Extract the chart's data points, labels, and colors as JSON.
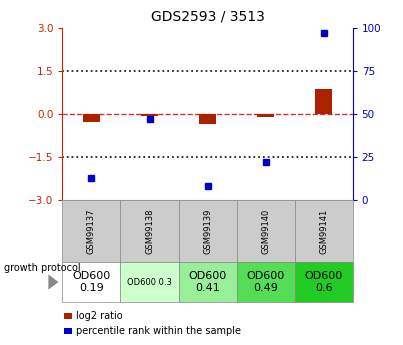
{
  "title": "GDS2593 / 3513",
  "samples": [
    "GSM99137",
    "GSM99138",
    "GSM99139",
    "GSM99140",
    "GSM99141"
  ],
  "log2_ratio": [
    -0.3,
    -0.07,
    -0.35,
    -0.1,
    0.85
  ],
  "percentile_rank": [
    13,
    47,
    8,
    22,
    97
  ],
  "ylim_left": [
    -3,
    3
  ],
  "ylim_right": [
    0,
    100
  ],
  "yticks_left": [
    -3,
    -1.5,
    0,
    1.5,
    3
  ],
  "yticks_right": [
    0,
    25,
    50,
    75,
    100
  ],
  "bar_color_red": "#aa2200",
  "bar_color_blue": "#0000cc",
  "dashed_line_color": "#cc3333",
  "dotted_line_color": "#222222",
  "sample_bg": "#cccccc",
  "protocol_labels": [
    "OD600\n0.19",
    "OD600 0.3",
    "OD600\n0.41",
    "OD600\n0.49",
    "OD600\n0.6"
  ],
  "protocol_colors": [
    "#ffffff",
    "#ccffcc",
    "#99ee99",
    "#55dd55",
    "#22cc22"
  ],
  "protocol_fontsizes": [
    8,
    6,
    8,
    8,
    8
  ],
  "growth_protocol_label": "growth protocol",
  "legend_red": "log2 ratio",
  "legend_blue": "percentile rank within the sample",
  "left_ylabel_color": "#cc2200",
  "right_ylabel_color": "#0000cc",
  "fig_width": 4.03,
  "fig_height": 3.45,
  "fig_dpi": 100
}
